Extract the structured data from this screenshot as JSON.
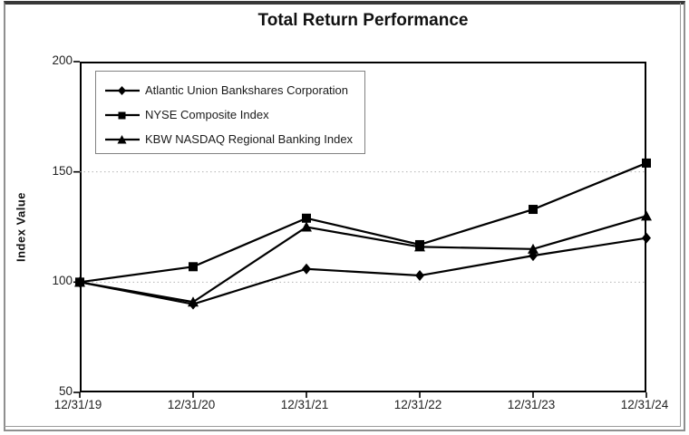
{
  "page": {
    "background": "#ffffff",
    "frame_color": "#8f8f8f",
    "accent_color": "#000000"
  },
  "chart": {
    "title": "Total Return Performance",
    "y_axis_title": "Index Value"
  },
  "chart_data": {
    "type": "line",
    "title": "Total Return Performance",
    "xlabel": "",
    "ylabel": "Index Value",
    "categories": [
      "12/31/19",
      "12/31/20",
      "12/31/21",
      "12/31/22",
      "12/31/23",
      "12/31/24"
    ],
    "series": [
      {
        "name": "Atlantic Union Bankshares Corporation",
        "marker": "diamond",
        "values": [
          100,
          90,
          106,
          103,
          112,
          120
        ]
      },
      {
        "name": "NYSE Composite Index",
        "marker": "square",
        "values": [
          100,
          107,
          129,
          117,
          133,
          154
        ]
      },
      {
        "name": "KBW NASDAQ Regional Banking Index",
        "marker": "triangle",
        "values": [
          100,
          91,
          125,
          116,
          115,
          130
        ]
      }
    ],
    "draw_order": [
      0,
      2,
      1
    ],
    "legend_order": [
      0,
      1,
      2
    ],
    "ylim": [
      50,
      200
    ],
    "yticks": [
      200,
      150,
      100,
      50
    ],
    "gridlines": [
      150,
      100
    ],
    "grid_color": "#b3b3b3",
    "line_color": "#000000",
    "legend_position": "top-left",
    "legend_border_color": "#828282"
  }
}
